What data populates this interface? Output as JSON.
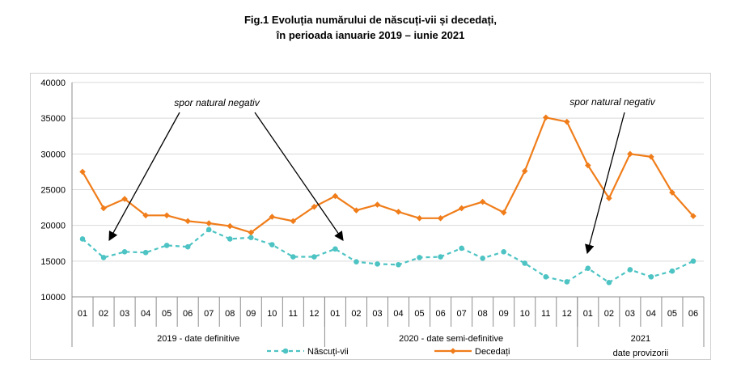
{
  "title_line1": "Fig.1 Evoluția numărului de născuți-vii și decedați,",
  "title_line2": "în perioada ianuarie 2019 –  iunie 2021",
  "chart_data": {
    "type": "line",
    "title": "Fig.1 Evoluția numărului de născuți-vii și decedați, în perioada ianuarie 2019 –  iunie 2021",
    "categories": [
      "01",
      "02",
      "03",
      "04",
      "05",
      "06",
      "07",
      "08",
      "09",
      "10",
      "11",
      "12",
      "01",
      "02",
      "03",
      "04",
      "05",
      "06",
      "07",
      "08",
      "09",
      "10",
      "11",
      "12",
      "01",
      "02",
      "03",
      "04",
      "05",
      "06"
    ],
    "groups": [
      {
        "label": "2019 - date definitive",
        "count": 12
      },
      {
        "label": "2020 - date semi-definitive",
        "count": 12
      },
      {
        "label": "2021",
        "sublabel": "date provizorii",
        "count": 6
      }
    ],
    "ylim": [
      10000,
      40000
    ],
    "yticks": [
      "10000",
      "15000",
      "20000",
      "25000",
      "30000",
      "35000",
      "40000"
    ],
    "grid": true,
    "legend_position": "bottom",
    "series": [
      {
        "name": "Născuți-vii",
        "color": "#4dc3c3",
        "style": "dashed-circle",
        "values": [
          18100,
          15500,
          16300,
          16200,
          17200,
          17000,
          19400,
          18100,
          18300,
          17300,
          15600,
          15600,
          16700,
          14900,
          14600,
          14500,
          15500,
          15600,
          16800,
          15400,
          16300,
          14700,
          12800,
          12100,
          14000,
          12000,
          13800,
          12800,
          13600,
          15000
        ]
      },
      {
        "name": "Decedați",
        "color": "#f07d1a",
        "style": "solid-diamond",
        "values": [
          27500,
          22400,
          23700,
          21400,
          21400,
          20600,
          20300,
          19900,
          19000,
          21200,
          20600,
          22600,
          24100,
          22100,
          22900,
          21900,
          21000,
          21000,
          22400,
          23300,
          21800,
          27600,
          35100,
          34500,
          28400,
          23800,
          30000,
          29600,
          24600,
          21300
        ]
      }
    ],
    "annotations": [
      {
        "text": "spor natural negativ"
      },
      {
        "text": "spor natural negativ"
      }
    ]
  }
}
